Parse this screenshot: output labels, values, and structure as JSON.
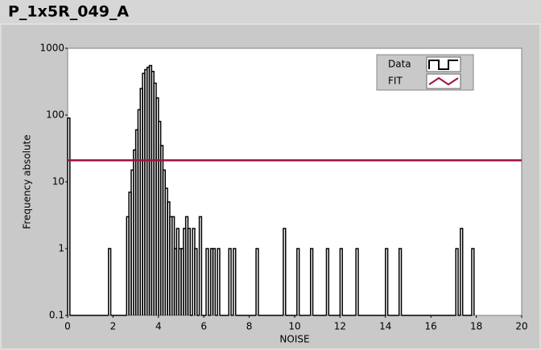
{
  "chart_data": {
    "type": "histogram",
    "title": "P_1x5R_049_A",
    "x_label": "NOISE",
    "y_label": "Frequency absolute",
    "bins": [
      0,
      0.1,
      1.8,
      1.9,
      2.6,
      2.7,
      2.8,
      2.9,
      3.0,
      3.1,
      3.2,
      3.3,
      3.4,
      3.5,
      3.6,
      3.7,
      3.8,
      3.9,
      4.0,
      4.1,
      4.2,
      4.3,
      4.4,
      4.5,
      4.6,
      4.7,
      4.8,
      4.9,
      5.0,
      5.1,
      5.2,
      5.3,
      5.4,
      5.5,
      5.6,
      5.7,
      5.8,
      5.9,
      6.1,
      6.2,
      6.3,
      6.4,
      6.5,
      6.6,
      6.7,
      7.1,
      7.2,
      7.3,
      7.4,
      8.3,
      8.4,
      9.5,
      9.6,
      10.1,
      10.2,
      10.7,
      10.8,
      11.4,
      11.5,
      12.0,
      12.1,
      12.7,
      12.8,
      14.0,
      14.1,
      14.6,
      14.7,
      17.1,
      17.2,
      17.3,
      17.4,
      17.8,
      17.9
    ],
    "series": [
      {
        "name": "Data",
        "color": "#000000",
        "values": [
          90,
          0,
          1,
          0,
          3,
          7,
          15,
          30,
          60,
          120,
          250,
          420,
          480,
          520,
          550,
          450,
          300,
          180,
          80,
          35,
          15,
          8,
          5,
          3,
          3,
          1,
          2,
          1,
          1,
          2,
          3,
          2,
          0,
          2,
          1,
          0,
          3,
          0,
          1,
          0,
          1,
          1,
          0,
          1,
          0,
          1,
          0,
          1,
          0,
          1,
          0,
          2,
          0,
          1,
          0,
          1,
          0,
          1,
          0,
          1,
          0,
          1,
          0,
          1,
          0,
          1,
          0,
          1,
          0,
          2,
          0,
          1
        ]
      },
      {
        "name": "FIT",
        "color": "#a0143c",
        "x": [
          0,
          20
        ],
        "values": [
          21,
          21
        ]
      }
    ],
    "xlim": [
      0,
      20
    ],
    "xticks": [
      0,
      2,
      4,
      6,
      8,
      10,
      12,
      14,
      16,
      18,
      20
    ],
    "ylim": [
      0.1,
      1000
    ],
    "yticks": [
      0.1,
      1,
      10,
      100,
      1000
    ],
    "yscale": "log",
    "legend": "upper right"
  }
}
